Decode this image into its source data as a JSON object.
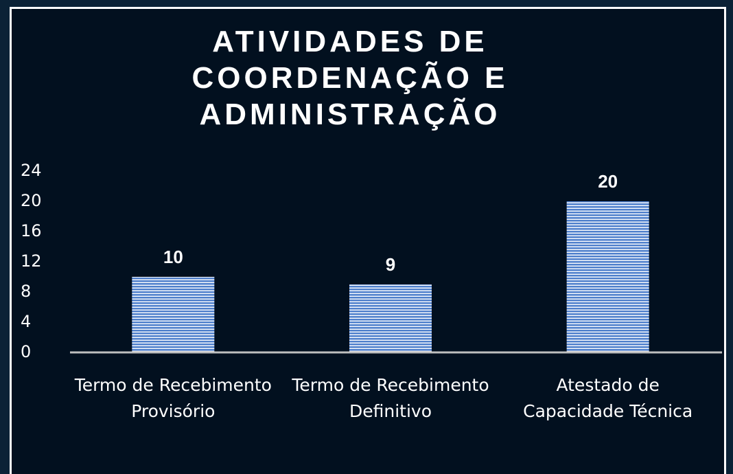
{
  "chart_data": {
    "type": "bar",
    "title": "ATIVIDADES DE COORDENAÇÃO E ADMINISTRAÇÃO",
    "categories": [
      "Termo de Recebimento Provisório",
      "Termo de Recebimento Definitivo",
      "Atestado de Capacidade Técnica"
    ],
    "values": [
      10,
      9,
      20
    ],
    "color": "#4f80cc",
    "ylim": [
      0,
      24
    ],
    "yticks": [
      0,
      4,
      8,
      12,
      16,
      20,
      24
    ],
    "grid": false
  }
}
